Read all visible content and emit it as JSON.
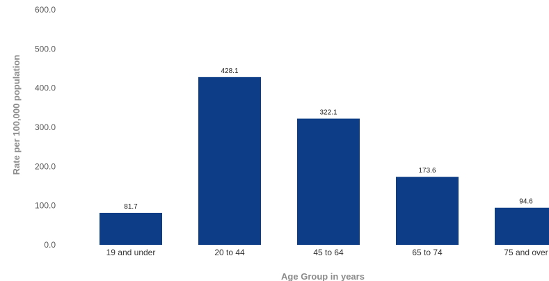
{
  "chart_data": {
    "type": "bar",
    "title": "",
    "xlabel": "Age Group in years",
    "ylabel": "Rate per 100,000 population",
    "categories": [
      "19 and under",
      "20 to 44",
      "45 to 64",
      "65 to 74",
      "75 and over"
    ],
    "values": [
      81.7,
      428.1,
      322.1,
      173.6,
      94.6
    ],
    "data_labels": [
      "81.7",
      "428.1",
      "322.1",
      "173.6",
      "94.6"
    ],
    "ylim": [
      0,
      600
    ],
    "yticks": [
      "0.0",
      "100.0",
      "200.0",
      "300.0",
      "400.0",
      "500.0",
      "600.0"
    ],
    "grid": false,
    "legend": "none",
    "bar_color": "#0D3D87"
  }
}
